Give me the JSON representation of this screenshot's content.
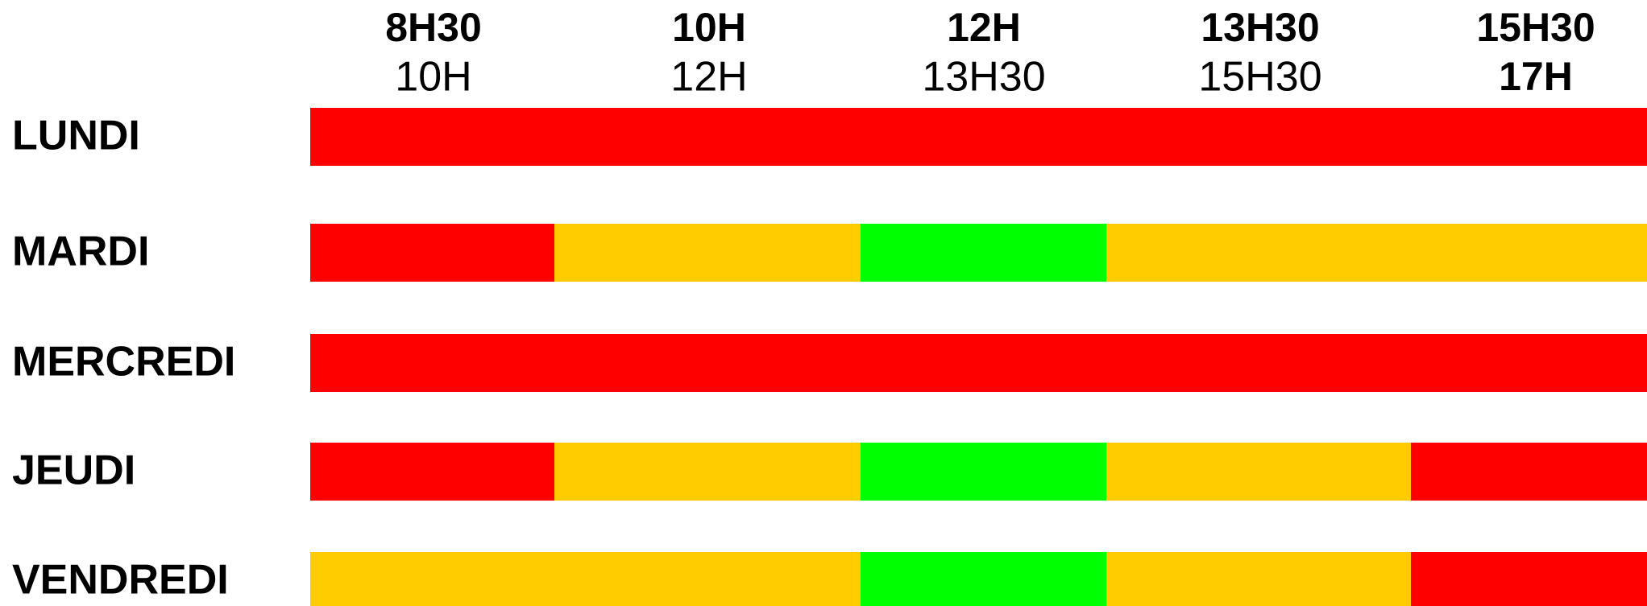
{
  "columns": [
    {
      "start": "8H30",
      "end": "10H"
    },
    {
      "start": "10H",
      "end": "12H"
    },
    {
      "start": "12H",
      "end": "13H30"
    },
    {
      "start": "13H30",
      "end": "15H30"
    },
    {
      "start": "15H30",
      "end": "17H"
    }
  ],
  "rows": [
    {
      "day": "LUNDI",
      "slots": [
        "#ff0000",
        "#ff0000",
        "#ff0000",
        "#ff0000",
        "#ff0000"
      ]
    },
    {
      "day": "MARDI",
      "slots": [
        "#ff0000",
        "#ffcc00",
        "#00ff00",
        "#ffcc00",
        "#ffcc00"
      ]
    },
    {
      "day": "MERCREDI",
      "slots": [
        "#ff0000",
        "#ff0000",
        "#ff0000",
        "#ff0000",
        "#ff0000"
      ]
    },
    {
      "day": "JEUDI",
      "slots": [
        "#ff0000",
        "#ffcc00",
        "#00ff00",
        "#ffcc00",
        "#ff0000"
      ]
    },
    {
      "day": "VENDREDI",
      "slots": [
        "#ffcc00",
        "#ffcc00",
        "#00ff00",
        "#ffcc00",
        "#ff0000"
      ]
    }
  ]
}
